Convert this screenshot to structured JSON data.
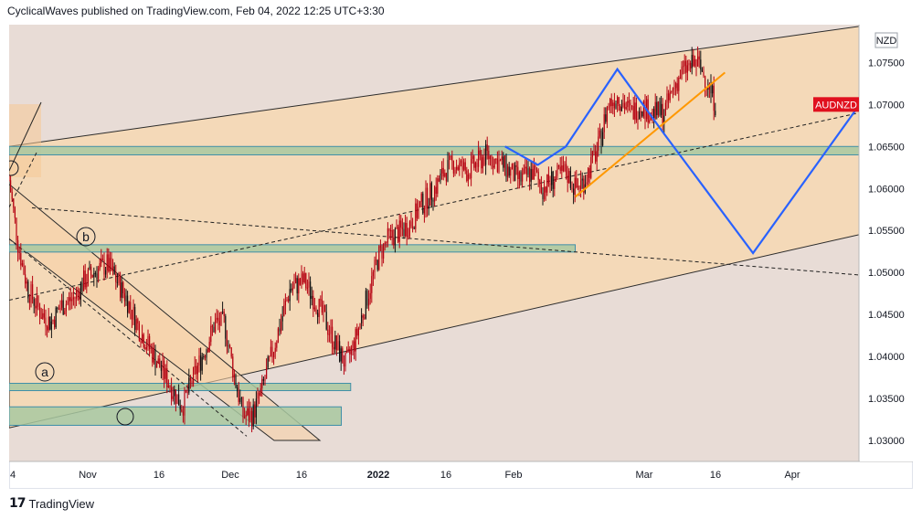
{
  "header": {
    "text": "CyclicalWaves published on TradingView.com, Feb 04, 2022 12:25 UTC+3:30"
  },
  "footer": {
    "logo_mark": "17",
    "logo_text": "TradingView"
  },
  "colors": {
    "chart_bg": "#e8dcd6",
    "channel_fill": "#f4d9b8",
    "zone_fill": "#a8c8a0",
    "zone_stroke": "#3f8fa8",
    "candle": "#b50010",
    "candle_alt": "#111111",
    "projection": "#2962ff",
    "trendline": "#ff9800",
    "symbol_tag": "#e0101e"
  },
  "chart_data": {
    "type": "candlestick",
    "symbol": "AUDNZD",
    "currency": "NZD",
    "ylim": [
      1.0275,
      1.0795
    ],
    "y_ticks": [
      "1.07500",
      "1.07000",
      "1.06500",
      "1.06000",
      "1.05500",
      "1.05000",
      "1.04500",
      "1.04000",
      "1.03500",
      "1.03000"
    ],
    "x_ticks": [
      "4",
      "Nov",
      "16",
      "Dec",
      "16",
      "2022",
      "16",
      "Feb",
      "Mar",
      "16",
      "Apr"
    ],
    "last_price_label": "AUDNZD",
    "price_path": [
      [
        "2021-10-04",
        1.061
      ],
      [
        "2021-10-06",
        1.053
      ],
      [
        "2021-10-08",
        1.048
      ],
      [
        "2021-10-11",
        1.045
      ],
      [
        "2021-10-13",
        1.044
      ],
      [
        "2021-10-15",
        1.046
      ],
      [
        "2021-10-18",
        1.047
      ],
      [
        "2021-10-20",
        1.049
      ],
      [
        "2021-10-22",
        1.05
      ],
      [
        "2021-10-25",
        1.051
      ],
      [
        "2021-10-27",
        1.049
      ],
      [
        "2021-10-29",
        1.047
      ],
      [
        "2021-11-01",
        1.043
      ],
      [
        "2021-11-03",
        1.041
      ],
      [
        "2021-11-05",
        1.039
      ],
      [
        "2021-11-08",
        1.036
      ],
      [
        "2021-11-10",
        1.034
      ],
      [
        "2021-11-12",
        1.037
      ],
      [
        "2021-11-15",
        1.041
      ],
      [
        "2021-11-17",
        1.044
      ],
      [
        "2021-11-19",
        1.044
      ],
      [
        "2021-11-21",
        1.038
      ],
      [
        "2021-11-23",
        1.033
      ],
      [
        "2021-11-25",
        1.033
      ],
      [
        "2021-11-27",
        1.036
      ],
      [
        "2021-11-29",
        1.04
      ],
      [
        "2021-12-01",
        1.044
      ],
      [
        "2021-12-03",
        1.048
      ],
      [
        "2021-12-06",
        1.049
      ],
      [
        "2021-12-08",
        1.047
      ],
      [
        "2021-12-10",
        1.045
      ],
      [
        "2021-12-13",
        1.041
      ],
      [
        "2021-12-15",
        1.039
      ],
      [
        "2021-12-17",
        1.042
      ],
      [
        "2021-12-20",
        1.048
      ],
      [
        "2021-12-22",
        1.052
      ],
      [
        "2021-12-24",
        1.054
      ],
      [
        "2021-12-27",
        1.055
      ],
      [
        "2021-12-29",
        1.056
      ],
      [
        "2021-12-31",
        1.058
      ],
      [
        "2022-01-03",
        1.06
      ],
      [
        "2022-01-05",
        1.062
      ],
      [
        "2022-01-07",
        1.063
      ],
      [
        "2022-01-10",
        1.062
      ],
      [
        "2022-01-12",
        1.063
      ],
      [
        "2022-01-14",
        1.064
      ],
      [
        "2022-01-17",
        1.063
      ],
      [
        "2022-01-19",
        1.062
      ],
      [
        "2022-01-21",
        1.061
      ],
      [
        "2022-01-24",
        1.062
      ],
      [
        "2022-01-26",
        1.06
      ],
      [
        "2022-01-28",
        1.061
      ],
      [
        "2022-01-31",
        1.062
      ],
      [
        "2022-02-02",
        1.06
      ],
      [
        "2022-02-04",
        1.061
      ],
      [
        "2022-02-07",
        1.065
      ],
      [
        "2022-02-09",
        1.07
      ],
      [
        "2022-02-11",
        1.071
      ],
      [
        "2022-02-14",
        1.069
      ],
      [
        "2022-02-16",
        1.07
      ],
      [
        "2022-02-18",
        1.069
      ],
      [
        "2022-02-21",
        1.069
      ],
      [
        "2022-02-23",
        1.072
      ],
      [
        "2022-02-25",
        1.074
      ],
      [
        "2022-02-28",
        1.075
      ],
      [
        "2022-03-02",
        1.073
      ],
      [
        "2022-03-04",
        1.07
      ]
    ],
    "zones": [
      {
        "name": "upper-support-zone",
        "from": "2021-10-04",
        "to": "2022-04-26",
        "low": 1.064,
        "high": 1.065
      },
      {
        "name": "middle-support-zone",
        "from": "2021-10-04",
        "to": "2022-02-02",
        "low": 1.0525,
        "high": 1.0533
      },
      {
        "name": "lower-support-zone",
        "from": "2021-10-04",
        "to": "2021-12-16",
        "low": 1.0362,
        "high": 1.0368
      },
      {
        "name": "bottom-support-zone",
        "from": "2021-10-04",
        "to": "2021-12-14",
        "low": 1.0318,
        "high": 1.034
      }
    ],
    "projection_path": [
      [
        "2022-01-18",
        1.065
      ],
      [
        "2022-01-25",
        1.0628
      ],
      [
        "2022-01-31",
        1.065
      ],
      [
        "2022-02-11",
        1.0742
      ],
      [
        "2022-02-21",
        1.0665
      ],
      [
        "2022-03-12",
        1.0523
      ],
      [
        "2022-04-15",
        1.0787
      ]
    ],
    "wave_labels": [
      "b",
      "a"
    ]
  }
}
